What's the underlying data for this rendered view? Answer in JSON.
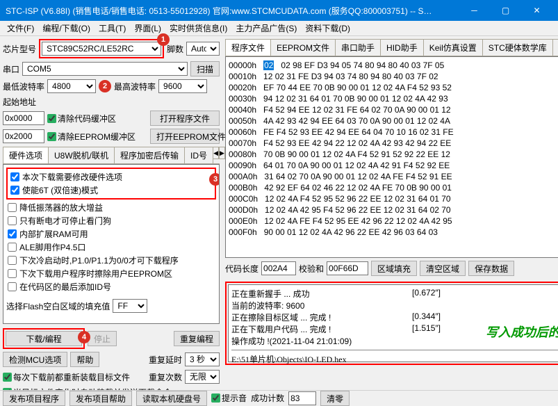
{
  "window": {
    "title": "STC-ISP (V6.88I) (销售电话/销售电话: 0513-55012928) 官网:www.STCMCUDATA.com (服务QQ:800003751) -- S…"
  },
  "menu": [
    "文件(F)",
    "编程/下载(O)",
    "工具(T)",
    "界面(L)",
    "实时供货信息(I)",
    "主力产品广告(S)",
    "资料下载(D)"
  ],
  "left": {
    "chip_label": "芯片型号",
    "chip_value": "STC89C52RC/LE52RC",
    "pin_label": "脚数",
    "pin_value": "Auto",
    "serial_label": "串口",
    "serial_value": "COM5",
    "scan_btn": "扫描",
    "min_baud_label": "最低波特率",
    "min_baud_value": "4800",
    "max_baud_label": "最高波特率",
    "max_baud_value": "9600",
    "start_addr_label": "起始地址",
    "addr1": "0x0000",
    "clear_code": "清除代码缓冲区",
    "open_code_btn": "打开程序文件",
    "addr2": "0x2000",
    "clear_eeprom": "清除EEPROM缓冲区",
    "open_eeprom_btn": "打开EEPROM文件",
    "hw_tabs": [
      "硬件选项",
      "U8W脱机/联机",
      "程序加密后传输",
      "ID号"
    ],
    "opts": [
      "本次下载需要修改硬件选项",
      "使能6T (双倍速)模式",
      "降低振荡器的放大增益",
      "只有断电才可停止看门狗",
      "内部扩展RAM可用",
      "ALE脚用作P4.5口",
      "下次冷启动时,P1.0/P1.1为0/0才可下载程序",
      "下次下载用户程序时擦除用户EEPROM区",
      "在代码区的最后添加ID号"
    ],
    "opt_checked": [
      true,
      true,
      false,
      false,
      true,
      false,
      false,
      false,
      false
    ],
    "flash_fill_label": "选择Flash空白区域的填充值",
    "flash_fill_value": "FF",
    "download_btn": "下载/编程",
    "stop_btn": "停止",
    "reprogram_btn": "重复编程",
    "detect_mcu_btn": "检测MCU选项",
    "help_btn": "帮助",
    "repeat_delay_label": "重复延时",
    "repeat_delay_value": "3 秒",
    "repeat_count_label": "重复次数",
    "repeat_count_value": "无限",
    "footer_check1": "每次下载前都重新装载目标文件",
    "footer_check2": "当目标文件变化时自动装载并发送下载命令"
  },
  "right": {
    "tabs": [
      "程序文件",
      "EEPROM文件",
      "串口助手",
      "HID助手",
      "Keil仿真设置",
      "STC硬体数学库",
      "选"
    ],
    "hex_first_byte": "02",
    "hex_rows": [
      {
        "addr": "00000h",
        "bytes": "   02 98 EF D3 94 05 74 80 94 80 40 03 7F 05"
      },
      {
        "addr": "00010h",
        "bytes": "12 02 31 FE D3 94 03 74 80 94 80 40 03 7F 02"
      },
      {
        "addr": "00020h",
        "bytes": "EF 70 44 EE 70 0B 90 00 01 12 02 4A F4 52 93 52"
      },
      {
        "addr": "00030h",
        "bytes": "94 12 02 31 64 01 70 0B 90 00 01 12 02 4A 42 93"
      },
      {
        "addr": "00040h",
        "bytes": "F4 52 94 EE 12 02 31 FE 64 02 70 0A 90 00 01 12"
      },
      {
        "addr": "00050h",
        "bytes": "4A 42 93 42 94 EE 64 03 70 0A 90 00 01 12 02 4A"
      },
      {
        "addr": "00060h",
        "bytes": "FE F4 52 93 EE 42 94 EE 64 04 70 10 16 02 31 FE"
      },
      {
        "addr": "00070h",
        "bytes": "F4 52 93 EE 42 94 22 12 02 4A 42 93 42 94 22 EE"
      },
      {
        "addr": "00080h",
        "bytes": "70 0B 90 00 01 12 02 4A F4 52 91 52 92 22 EE 12"
      },
      {
        "addr": "00090h",
        "bytes": "64 01 70 0A 90 00 01 12 02 4A 42 91 F4 52 92 EE"
      },
      {
        "addr": "000A0h",
        "bytes": "31 64 02 70 0A 90 00 01 12 02 4A FE F4 52 91 EE"
      },
      {
        "addr": "000B0h",
        "bytes": "42 92 EF 64 02 46 22 12 02 4A FE 70 0B 90 00 01"
      },
      {
        "addr": "000C0h",
        "bytes": "12 02 4A F4 52 95 52 96 22 EE 12 02 31 64 01 70"
      },
      {
        "addr": "000D0h",
        "bytes": "12 02 4A 42 95 F4 52 96 22 EE 12 02 31 64 02 70"
      },
      {
        "addr": "000E0h",
        "bytes": "12 02 4A FE F4 52 95 EE 42 96 22 12 02 4A 42 95"
      },
      {
        "addr": "000F0h",
        "bytes": "90 00 01 12 02 4A 42 96 22 EE 42 96 03 64 03"
      }
    ],
    "code_len_label": "代码长度",
    "code_len_value": "002A4",
    "checksum_label": "校验和",
    "checksum_value": "00F66D",
    "region_fill_btn": "区域填充",
    "clear_region_btn": "清空区域",
    "save_data_btn": "保存数据",
    "log_lines": [
      {
        "text": "正在重新握手 ... 成功",
        "time": "[0.672″]"
      },
      {
        "text": "当前的波特率: 9600",
        "time": ""
      },
      {
        "text": "正在擦除目标区域 ... 完成 !",
        "time": "[0.344″]"
      },
      {
        "text": "正在下载用户代码 ... 完成 !",
        "time": "[1.515″]"
      },
      {
        "text": "",
        "time": ""
      },
      {
        "text": "操作成功 !(2021-11-04 21:01:09)",
        "time": ""
      }
    ],
    "success_msg": "写入成功后的信息",
    "hex_path": "E:\\51单片机\\Objects\\IO-LED.hex"
  },
  "statusbar": {
    "publish_btn": "发布项目程序",
    "publish_help_btn": "发布项目帮助",
    "read_disk_btn": "读取本机硬盘号",
    "hint_check": "提示音",
    "success_label": "成功计数",
    "success_value": "83",
    "clear_btn": "清零"
  },
  "circles": [
    "1",
    "2",
    "3",
    "4"
  ],
  "colors": {
    "red": "#ff0000",
    "titlebar": "#0078d7",
    "green": "#009900"
  }
}
